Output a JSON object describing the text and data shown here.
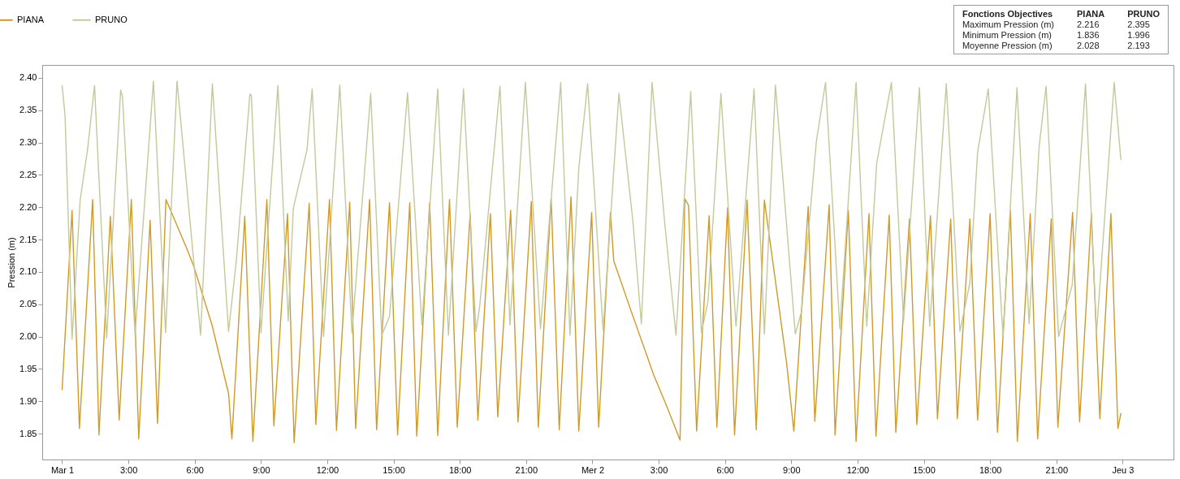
{
  "chart_data": {
    "type": "line",
    "ylabel": "Pression (m)",
    "xlim": [
      "--02-28T23:06",
      "--03-03T02:18"
    ],
    "xticks": [
      {
        "value": "--03-01T00:00",
        "label": "Mar 1"
      },
      {
        "value": "--03-01T03:00",
        "label": "3:00"
      },
      {
        "value": "--03-01T06:00",
        "label": "6:00"
      },
      {
        "value": "--03-01T09:00",
        "label": "9:00"
      },
      {
        "value": "--03-01T12:00",
        "label": "12:00"
      },
      {
        "value": "--03-01T15:00",
        "label": "15:00"
      },
      {
        "value": "--03-01T18:00",
        "label": "18:00"
      },
      {
        "value": "--03-01T21:00",
        "label": "21:00"
      },
      {
        "value": "--03-02T00:00",
        "label": "Mer 2"
      },
      {
        "value": "--03-02T03:00",
        "label": "3:00"
      },
      {
        "value": "--03-02T06:00",
        "label": "6:00"
      },
      {
        "value": "--03-02T09:00",
        "label": "9:00"
      },
      {
        "value": "--03-02T12:00",
        "label": "12:00"
      },
      {
        "value": "--03-02T15:00",
        "label": "15:00"
      },
      {
        "value": "--03-02T18:00",
        "label": "18:00"
      },
      {
        "value": "--03-02T21:00",
        "label": "21:00"
      },
      {
        "value": "--03-03T00:00",
        "label": "Jeu 3"
      }
    ],
    "ylim": [
      1.81,
      2.42
    ],
    "yticks": [
      1.85,
      {
        "value": 1.9,
        "label": "1.90"
      },
      1.95,
      {
        "value": 2.0,
        "label": "2.00"
      },
      2.05,
      {
        "value": 2.1,
        "label": "2.10"
      },
      2.15,
      {
        "value": 2.2,
        "label": "2.20"
      },
      2.25,
      {
        "value": 2.3,
        "label": "2.30"
      },
      2.35,
      {
        "value": 2.4,
        "label": "2.40"
      }
    ],
    "grid": false,
    "legend": "top left",
    "marker": "none",
    "line_style": "solid",
    "annotations": [
      "Fonctions Objectives",
      "PIANA",
      "PRUNO",
      "Maximum Pression (m)",
      "2.216",
      "2.395",
      "Minimum Pression (m)",
      "1.836",
      "1.996",
      "Moyenne Pression (m)",
      "2.028",
      "2.193"
    ],
    "series": [
      {
        "name": "PIANA",
        "color": "#d19a26",
        "x": [
          "--03-01T00:00",
          "--03-01T00:27",
          "--03-01T00:47",
          "--03-01T01:23",
          "--03-01T01:40",
          "--03-01T02:11",
          "--03-01T02:35",
          "--03-01T03:08",
          "--03-01T03:28",
          "--03-01T03:59",
          "--03-01T04:19",
          "--03-01T04:42",
          "--03-01T05:38",
          "--03-01T05:58",
          "--03-01T06:47",
          "--03-01T07:32",
          "--03-01T07:41",
          "--03-01T08:16",
          "--03-01T08:38",
          "--03-01T09:16",
          "--03-01T09:35",
          "--03-01T10:12",
          "--03-01T10:30",
          "--03-01T11:11",
          "--03-01T11:29",
          "--03-01T12:06",
          "--03-01T12:25",
          "--03-01T13:01",
          "--03-01T13:17",
          "--03-01T13:55",
          "--03-01T14:14",
          "--03-01T14:49",
          "--03-01T15:11",
          "--03-01T15:44",
          "--03-01T16:03",
          "--03-01T16:38",
          "--03-01T17:00",
          "--03-01T17:32",
          "--03-01T17:53",
          "--03-01T18:28",
          "--03-01T18:49",
          "--03-01T19:23",
          "--03-01T19:43",
          "--03-01T20:18",
          "--03-01T20:38",
          "--03-01T21:14",
          "--03-01T21:33",
          "--03-01T22:08",
          "--03-01T22:30",
          "--03-01T23:02",
          "--03-01T23:23",
          "--03-01T23:58",
          "--03-02T00:17",
          "--03-02T00:49",
          "--03-02T00:58",
          "--03-02T01:43",
          "--03-02T02:47",
          "--03-02T03:20",
          "--03-02T03:58",
          "--03-02T04:11",
          "--03-02T04:21",
          "--03-02T04:43",
          "--03-02T05:17",
          "--03-02T05:38",
          "--03-02T06:07",
          "--03-02T06:26",
          "--03-02T07:00",
          "--03-02T07:25",
          "--03-02T07:47",
          "--03-02T08:47",
          "--03-02T09:07",
          "--03-02T09:46",
          "--03-02T10:04",
          "--03-02T10:43",
          "--03-02T10:59",
          "--03-02T11:35",
          "--03-02T11:56",
          "--03-02T12:31",
          "--03-02T12:50",
          "--03-02T13:26",
          "--03-02T13:44",
          "--03-02T14:21",
          "--03-02T14:41",
          "--03-02T15:18",
          "--03-02T15:37",
          "--03-02T16:13",
          "--03-02T16:31",
          "--03-02T17:05",
          "--03-02T17:26",
          "--03-02T18:00",
          "--03-02T18:20",
          "--03-02T18:55",
          "--03-02T19:14",
          "--03-02T19:49",
          "--03-02T20:09",
          "--03-02T20:46",
          "--03-02T21:04",
          "--03-02T21:44",
          "--03-02T22:03",
          "--03-02T22:35",
          "--03-02T22:58",
          "--03-02T23:28",
          "--03-02T23:47",
          "--03-02T23:55"
        ],
        "values": [
          1.918,
          2.195,
          1.858,
          2.212,
          1.848,
          2.186,
          1.871,
          2.212,
          1.842,
          2.18,
          1.866,
          2.212,
          2.137,
          2.108,
          2.018,
          1.912,
          1.842,
          2.186,
          1.838,
          2.212,
          1.862,
          2.19,
          1.836,
          2.206,
          1.864,
          2.212,
          1.855,
          2.208,
          1.858,
          2.212,
          1.856,
          2.207,
          1.848,
          2.207,
          1.846,
          2.207,
          1.847,
          2.212,
          1.86,
          2.19,
          1.871,
          2.19,
          1.876,
          2.195,
          1.868,
          2.209,
          1.86,
          2.214,
          1.856,
          2.216,
          1.854,
          2.192,
          1.86,
          2.192,
          2.117,
          2.043,
          1.94,
          1.895,
          1.84,
          2.213,
          2.203,
          1.854,
          2.187,
          1.86,
          2.199,
          1.848,
          2.211,
          1.856,
          2.211,
          1.961,
          1.854,
          2.201,
          1.869,
          2.204,
          1.848,
          2.195,
          1.838,
          2.19,
          1.846,
          2.188,
          1.852,
          2.182,
          1.864,
          2.187,
          1.873,
          2.182,
          1.873,
          2.182,
          1.871,
          2.19,
          1.852,
          2.195,
          1.838,
          2.19,
          1.842,
          2.182,
          1.86,
          2.192,
          1.868,
          2.19,
          1.873,
          2.19,
          1.858,
          1.881
        ]
      },
      {
        "name": "PRUNO",
        "color": "#c2c99a",
        "x": [
          "--03-01T00:00",
          "--03-01T00:08",
          "--03-01T00:27",
          "--03-01T00:49",
          "--03-01T01:09",
          "--03-01T01:28",
          "--03-01T02:01",
          "--03-01T02:39",
          "--03-01T02:44",
          "--03-01T03:18",
          "--03-01T04:08",
          "--03-01T04:41",
          "--03-01T05:12",
          "--03-01T06:16",
          "--03-01T06:48",
          "--03-01T07:32",
          "--03-01T07:53",
          "--03-01T08:30",
          "--03-01T08:34",
          "--03-01T09:00",
          "--03-01T09:46",
          "--03-01T10:14",
          "--03-01T10:28",
          "--03-01T11:05",
          "--03-01T11:19",
          "--03-01T11:50",
          "--03-01T12:34",
          "--03-01T13:07",
          "--03-01T13:58",
          "--03-01T14:28",
          "--03-01T14:49",
          "--03-01T15:38",
          "--03-01T16:17",
          "--03-01T17:00",
          "--03-01T17:29",
          "--03-01T18:10",
          "--03-01T18:44",
          "--03-01T18:54",
          "--03-01T19:49",
          "--03-01T20:16",
          "--03-01T20:58",
          "--03-01T21:39",
          "--03-01T22:34",
          "--03-01T22:59",
          "--03-01T23:23",
          "--03-01T23:47",
          "--03-02T00:29",
          "--03-02T01:12",
          "--03-02T01:50",
          "--03-02T02:13",
          "--03-02T02:42",
          "--03-02T03:16",
          "--03-02T03:47",
          "--03-02T04:27",
          "--03-02T04:56",
          "--03-02T05:14",
          "--03-02T05:49",
          "--03-02T06:30",
          "--03-02T07:19",
          "--03-02T07:47",
          "--03-02T08:17",
          "--03-02T09:11",
          "--03-02T09:28",
          "--03-02T10:08",
          "--03-02T10:33",
          "--03-02T11:12",
          "--03-02T11:56",
          "--03-02T12:25",
          "--03-02T12:52",
          "--03-02T13:32",
          "--03-02T14:05",
          "--03-02T14:48",
          "--03-02T15:16",
          "--03-02T16:01",
          "--03-02T16:38",
          "--03-02T17:05",
          "--03-02T17:26",
          "--03-02T17:55",
          "--03-02T18:35",
          "--03-02T19:13",
          "--03-02T19:46",
          "--03-02T20:13",
          "--03-02T20:32",
          "--03-02T21:06",
          "--03-02T21:43",
          "--03-02T22:19",
          "--03-02T22:49",
          "--03-02T23:37",
          "--03-02T23:55"
        ],
        "values": [
          2.388,
          2.342,
          1.996,
          2.211,
          2.289,
          2.388,
          1.998,
          2.381,
          2.371,
          2.002,
          2.395,
          2.006,
          2.395,
          2.002,
          2.391,
          2.008,
          2.117,
          2.375,
          2.373,
          2.006,
          2.388,
          2.024,
          2.199,
          2.289,
          2.383,
          2.0,
          2.389,
          2.006,
          2.376,
          2.002,
          2.031,
          2.377,
          2.018,
          2.383,
          2.002,
          2.383,
          2.008,
          2.047,
          2.387,
          2.018,
          2.393,
          2.012,
          2.393,
          2.002,
          2.26,
          2.391,
          2.01,
          2.376,
          2.178,
          2.02,
          2.393,
          2.178,
          2.002,
          2.379,
          2.006,
          2.055,
          2.376,
          2.016,
          2.383,
          2.004,
          2.389,
          2.004,
          2.039,
          2.301,
          2.393,
          2.012,
          2.393,
          2.016,
          2.268,
          2.393,
          2.024,
          2.385,
          2.016,
          2.391,
          2.008,
          2.083,
          2.285,
          2.383,
          2.0,
          2.385,
          2.02,
          2.293,
          2.387,
          2.0,
          2.08,
          2.391,
          2.006,
          2.393,
          2.274
        ]
      }
    ]
  }
}
